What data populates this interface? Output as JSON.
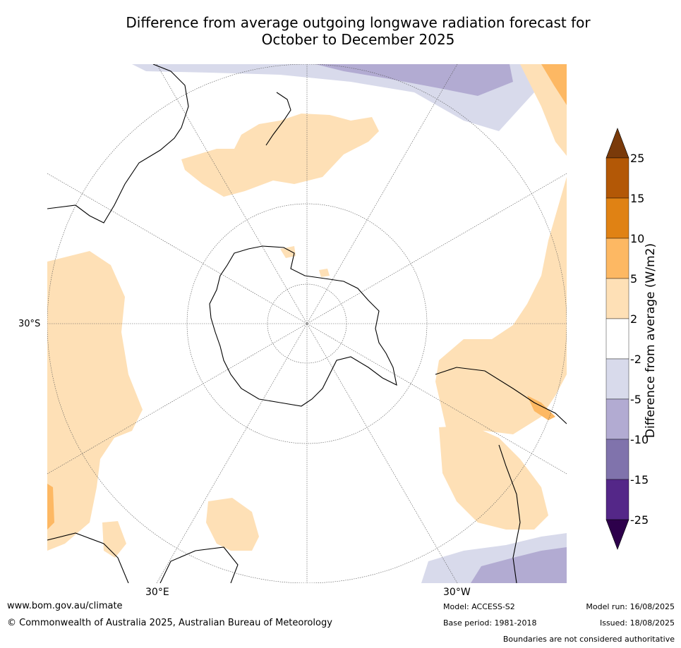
{
  "title_line1": "Difference from average outgoing longwave radiation forecast for",
  "title_line2": "October to December 2025",
  "map": {
    "lat_label": "30°S",
    "lon_labels": [
      "30°E",
      "30°W"
    ]
  },
  "legend": {
    "title": "Difference from average (W/m2)",
    "ticks": [
      "25",
      "15",
      "10",
      "5",
      "2",
      "-2",
      "-5",
      "-10",
      "-15",
      "-25"
    ],
    "colors": [
      "#7a3a0a",
      "#b35806",
      "#e08214",
      "#fdb863",
      "#fee0b6",
      "#ffffff",
      "#d8daeb",
      "#b2abd2",
      "#8073ac",
      "#542788",
      "#2d004b"
    ]
  },
  "footer": {
    "website": "www.bom.gov.au/climate",
    "copyright": "© Commonwealth of Australia 2025, Australian Bureau of Meteorology",
    "model": "Model: ACCESS-S2",
    "base_period": "Base period: 1981-2018",
    "model_run": "Model run: 16/08/2025",
    "issued": "Issued: 18/08/2025",
    "disclaimer": "Boundaries are not considered authoritative"
  }
}
